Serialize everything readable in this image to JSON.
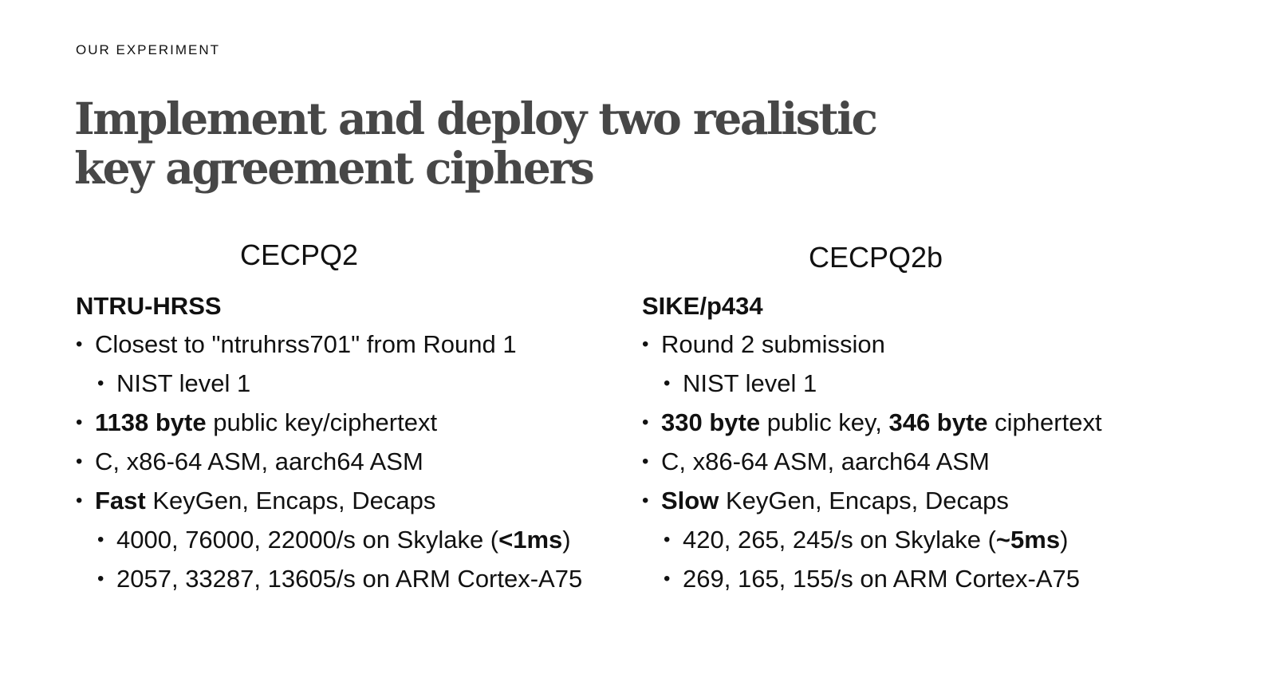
{
  "eyebrow": "OUR EXPERIMENT",
  "title": "Implement and deploy two realistic key agreement ciphers",
  "left": {
    "heading": "CECPQ2",
    "algorithm": "NTRU-HRSS",
    "items": {
      "i0": {
        "text": "Closest to \"ntruhrss701\" from Round 1"
      },
      "i1": {
        "text": "NIST level 1"
      },
      "i2": {
        "bold": "1138 byte",
        "text": " public key/ciphertext"
      },
      "i3": {
        "text": "C, x86-64 ASM, aarch64 ASM"
      },
      "i4": {
        "bold": "Fast",
        "text": " KeyGen, Encaps, Decaps"
      },
      "i5": {
        "pre": "4000, 76000, 22000/s on Skylake (",
        "bold": "<1ms",
        "post": ")"
      },
      "i6": {
        "text": "2057, 33287, 13605/s on ARM Cortex-A75"
      }
    }
  },
  "right": {
    "heading": "CECPQ2b",
    "algorithm": "SIKE/p434",
    "items": {
      "i0": {
        "text": "Round 2 submission"
      },
      "i1": {
        "text": "NIST level 1"
      },
      "i2": {
        "bold": "330 byte",
        "mid": " public key, ",
        "bold2": "346 byte",
        "text": " ciphertext"
      },
      "i3": {
        "text": "C, x86-64 ASM, aarch64 ASM"
      },
      "i4": {
        "bold": "Slow",
        "text": " KeyGen, Encaps, Decaps"
      },
      "i5": {
        "pre": "420, 265, 245/s on Skylake (",
        "bold": "~5ms",
        "post": ")"
      },
      "i6": {
        "text": "269, 165, 155/s on  ARM Cortex-A75"
      }
    }
  }
}
